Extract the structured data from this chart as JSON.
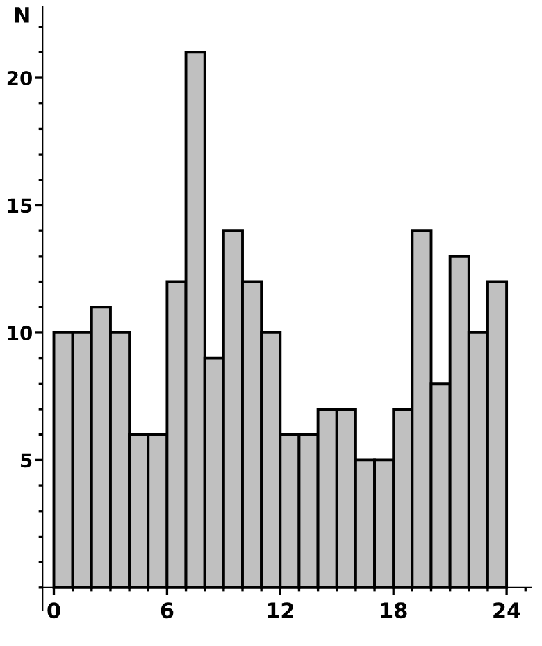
{
  "chart_data": {
    "type": "histogram",
    "ylabel": "N",
    "bins": [
      0,
      1,
      2,
      3,
      4,
      5,
      6,
      7,
      8,
      9,
      10,
      11,
      12,
      13,
      14,
      15,
      16,
      17,
      18,
      19,
      20,
      21,
      22,
      23,
      24
    ],
    "values": [
      10,
      10,
      11,
      10,
      6,
      6,
      12,
      21,
      9,
      14,
      12,
      10,
      6,
      6,
      7,
      7,
      5,
      5,
      7,
      14,
      8,
      13,
      10,
      12
    ],
    "color": "#c0c0c0",
    "xlim": [
      -0.7,
      25.3
    ],
    "ylim": [
      -0.9,
      22.8
    ],
    "xticks": [
      0,
      6,
      12,
      18,
      24
    ],
    "yticks": [
      5,
      10,
      15,
      20
    ],
    "grid": false
  }
}
